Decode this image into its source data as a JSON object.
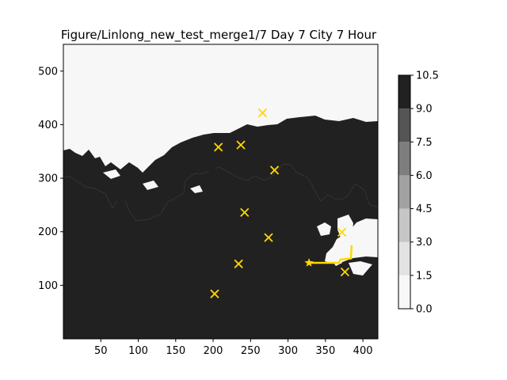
{
  "chart_data": {
    "type": "contour-map",
    "title": "Figure/Linlong_new_test_merge1/7 Day 7 City 7 Hour",
    "xlabel": "",
    "ylabel": "",
    "xlim": [
      0,
      420
    ],
    "ylim": [
      0,
      550
    ],
    "x_ticks": [
      "50",
      "100",
      "150",
      "200",
      "250",
      "300",
      "350",
      "400"
    ],
    "y_ticks": [
      "100",
      "200",
      "300",
      "400",
      "500"
    ],
    "colorbar": {
      "min": 0.0,
      "max": 10.5,
      "ticks": [
        "0.0",
        "1.5",
        "3.0",
        "4.5",
        "6.0",
        "7.5",
        "9.0",
        "10.5"
      ],
      "levels": [
        {
          "from": 0.0,
          "to": 1.5,
          "color": "#f7f7f7"
        },
        {
          "from": 1.5,
          "to": 3.0,
          "color": "#e2e2e2"
        },
        {
          "from": 3.0,
          "to": 4.5,
          "color": "#c6c6c6"
        },
        {
          "from": 4.5,
          "to": 6.0,
          "color": "#a2a2a2"
        },
        {
          "from": 6.0,
          "to": 7.5,
          "color": "#7e7e7e"
        },
        {
          "from": 7.5,
          "to": 9.0,
          "color": "#555555"
        },
        {
          "from": 9.0,
          "to": 10.5,
          "color": "#212121"
        }
      ]
    },
    "marker_color": "#ffd700",
    "cities": [
      {
        "x": 266,
        "y": 422
      },
      {
        "x": 207,
        "y": 358
      },
      {
        "x": 237,
        "y": 362
      },
      {
        "x": 282,
        "y": 315
      },
      {
        "x": 242,
        "y": 236
      },
      {
        "x": 274,
        "y": 189
      },
      {
        "x": 372,
        "y": 199
      },
      {
        "x": 234,
        "y": 140
      },
      {
        "x": 376,
        "y": 125
      },
      {
        "x": 202,
        "y": 84
      }
    ],
    "start": {
      "x": 328,
      "y": 142
    },
    "path": [
      [
        328,
        142
      ],
      [
        368,
        142
      ],
      [
        370,
        148
      ],
      [
        384,
        150
      ],
      [
        385,
        175
      ]
    ]
  }
}
